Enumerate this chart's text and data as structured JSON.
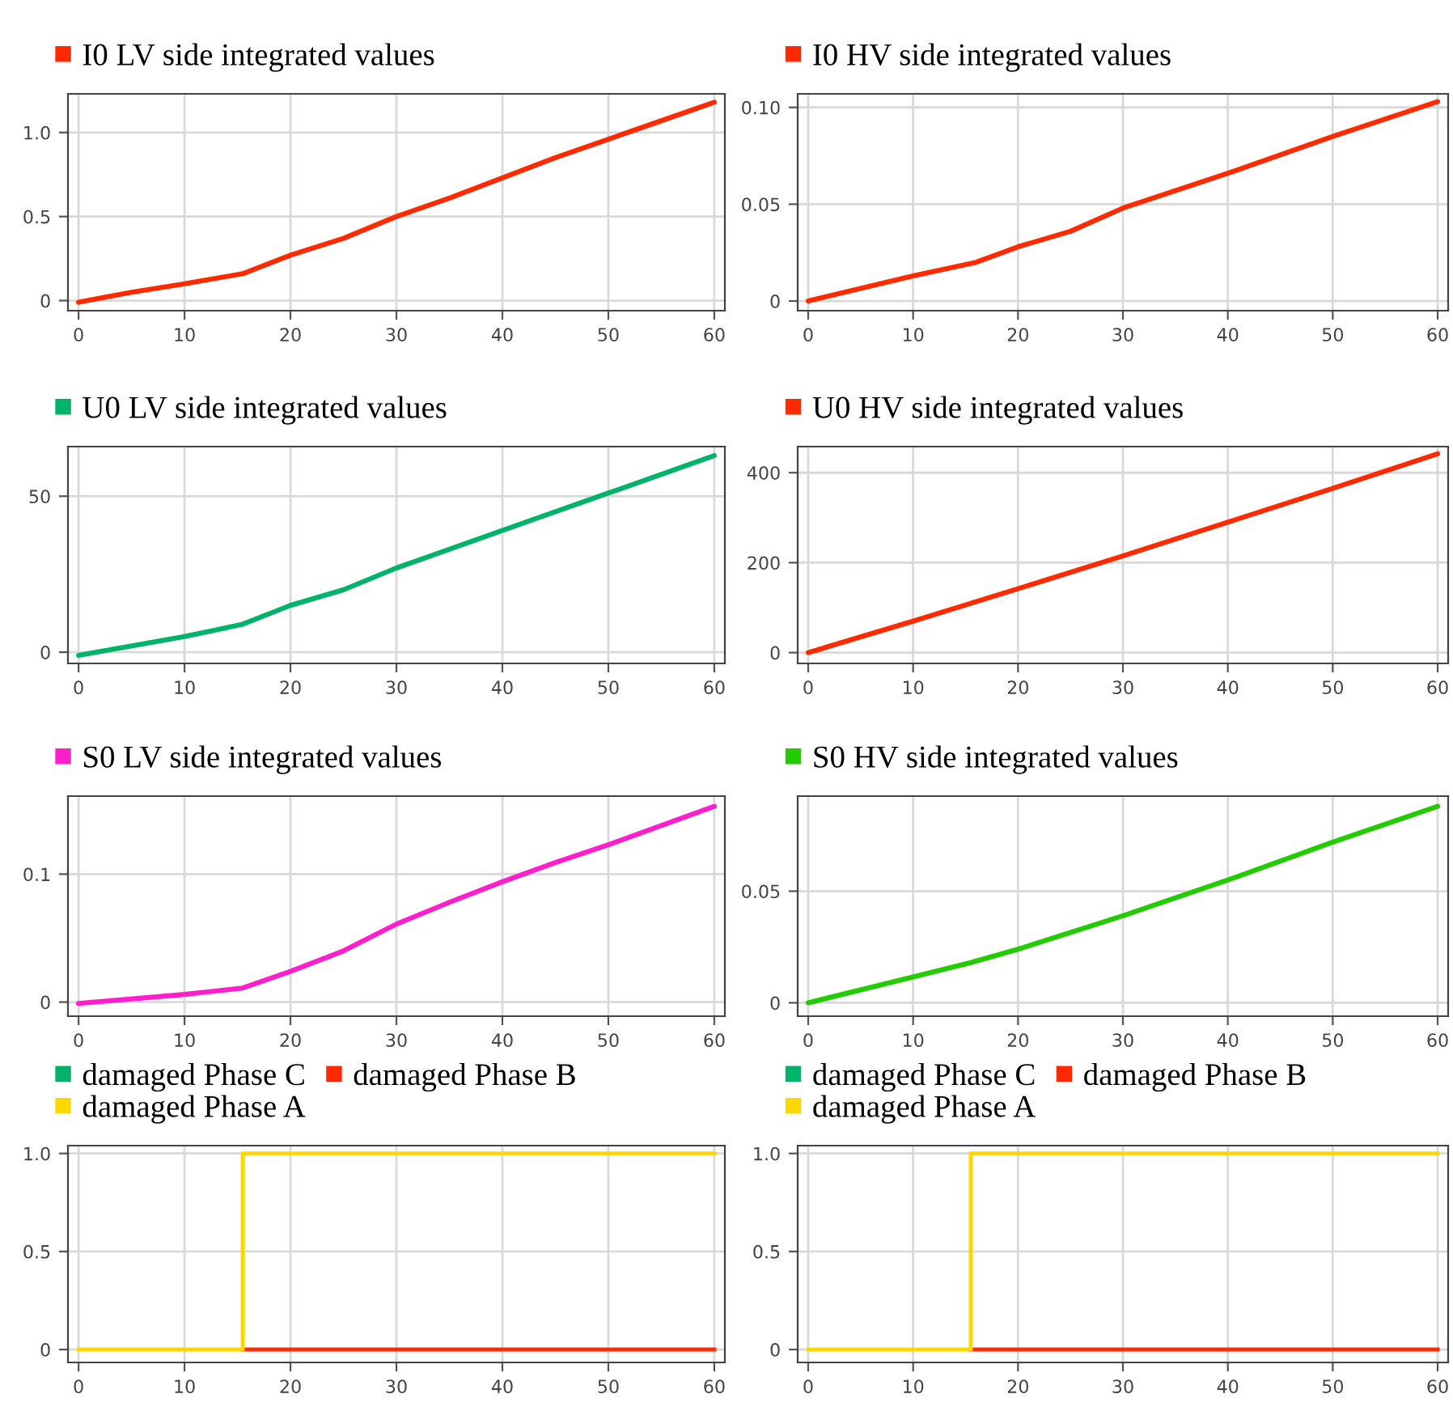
{
  "chart_data": [
    {
      "type": "line",
      "x": [
        0,
        5,
        10,
        15.5,
        20,
        25,
        30,
        35,
        40,
        45,
        50,
        55,
        60
      ],
      "xlim": [
        -1,
        61
      ],
      "xticks": [
        0,
        10,
        20,
        30,
        40,
        50,
        60
      ],
      "ylim": [
        -0.06,
        1.23
      ],
      "yticks": [
        0,
        {
          "value": 0.5,
          "label": "0.5"
        },
        {
          "value": 1.0,
          "label": "1.0"
        }
      ],
      "grid": true,
      "legend": "top",
      "series": [
        {
          "name": "I0 LV side integrated values",
          "color": "#ff2a00",
          "values": [
            -0.01,
            0.05,
            0.1,
            0.16,
            0.27,
            0.37,
            0.5,
            0.61,
            0.73,
            0.85,
            0.96,
            1.07,
            1.18
          ]
        }
      ]
    },
    {
      "type": "line",
      "x": [
        0,
        10,
        16,
        20,
        25,
        30,
        40,
        50,
        60
      ],
      "xlim": [
        -1,
        61
      ],
      "xticks": [
        0,
        10,
        20,
        30,
        40,
        50,
        60
      ],
      "ylim": [
        -0.005,
        0.107
      ],
      "yticks": [
        0,
        {
          "value": 0.05,
          "label": "0.05"
        },
        {
          "value": 0.1,
          "label": "0.10"
        }
      ],
      "grid": true,
      "legend": "top",
      "series": [
        {
          "name": "I0 HV side integrated values",
          "color": "#ff2a00",
          "values": [
            0,
            0.013,
            0.02,
            0.028,
            0.036,
            0.048,
            0.066,
            0.085,
            0.103
          ]
        }
      ]
    },
    {
      "type": "line",
      "x": [
        0,
        10,
        15.5,
        20,
        25,
        30,
        35,
        40,
        50,
        60
      ],
      "xlim": [
        -1,
        61
      ],
      "xticks": [
        0,
        10,
        20,
        30,
        40,
        50,
        60
      ],
      "ylim": [
        -3.6,
        65.9
      ],
      "yticks": [
        0,
        50
      ],
      "grid": true,
      "legend": "top",
      "series": [
        {
          "name": "U0 LV side integrated values",
          "color": "#00b36b",
          "values": [
            -1,
            5,
            9,
            15,
            20,
            27,
            33,
            39,
            51,
            63
          ]
        }
      ]
    },
    {
      "type": "line",
      "x": [
        0,
        10,
        20,
        30,
        40,
        50,
        60
      ],
      "xlim": [
        -1,
        61
      ],
      "xticks": [
        0,
        10,
        20,
        30,
        40,
        50,
        60
      ],
      "ylim": [
        -24,
        458
      ],
      "yticks": [
        0,
        200,
        400
      ],
      "grid": true,
      "legend": "top",
      "series": [
        {
          "name": "U0 HV side integrated values",
          "color": "#ff2a00",
          "values": [
            0,
            70,
            142,
            215,
            290,
            365,
            442
          ]
        }
      ]
    },
    {
      "type": "line",
      "x": [
        0,
        10,
        15.5,
        20,
        25,
        30,
        35,
        40,
        45,
        50,
        55,
        60
      ],
      "xlim": [
        -1,
        61
      ],
      "xticks": [
        0,
        10,
        20,
        30,
        40,
        50,
        60
      ],
      "ylim": [
        -0.011,
        0.161
      ],
      "yticks": [
        0,
        {
          "value": 0.1,
          "label": "0.1"
        }
      ],
      "grid": true,
      "legend": "top",
      "series": [
        {
          "name": "S0 LV side integrated values",
          "color": "#ff1ecb",
          "values": [
            -0.001,
            0.006,
            0.011,
            0.024,
            0.04,
            0.061,
            0.078,
            0.094,
            0.109,
            0.123,
            0.138,
            0.153
          ]
        }
      ]
    },
    {
      "type": "line",
      "x": [
        0,
        10,
        15.5,
        20,
        30,
        40,
        50,
        60
      ],
      "xlim": [
        -1,
        61
      ],
      "xticks": [
        0,
        10,
        20,
        30,
        40,
        50,
        60
      ],
      "ylim": [
        -0.006,
        0.0926
      ],
      "yticks": [
        0,
        {
          "value": 0.05,
          "label": "0.05"
        }
      ],
      "grid": true,
      "legend": "top",
      "series": [
        {
          "name": "S0 HV side integrated values",
          "color": "#22cc00",
          "values": [
            0,
            0.0116,
            0.018,
            0.024,
            0.039,
            0.055,
            0.072,
            0.088
          ]
        }
      ]
    },
    {
      "type": "step",
      "x": [
        0,
        15.5,
        60
      ],
      "xlim": [
        -1,
        61
      ],
      "xticks": [
        0,
        10,
        20,
        30,
        40,
        50,
        60
      ],
      "ylim": [
        -0.066,
        1.04
      ],
      "yticks": [
        0,
        {
          "value": 0.5,
          "label": "0.5"
        },
        {
          "value": 1.0,
          "label": "1.0"
        }
      ],
      "grid": true,
      "legend": "top",
      "series": [
        {
          "name": "damaged Phase C",
          "color": "#00b36b",
          "values": [
            null,
            null,
            null
          ]
        },
        {
          "name": "damaged Phase B",
          "color": "#ff2a00",
          "values": [
            null,
            0,
            0
          ]
        },
        {
          "name": "damaged Phase A",
          "color": "#ffd700",
          "values": [
            0,
            1,
            1
          ]
        }
      ]
    },
    {
      "type": "step",
      "x": [
        0,
        15.5,
        60
      ],
      "xlim": [
        -1,
        61
      ],
      "xticks": [
        0,
        10,
        20,
        30,
        40,
        50,
        60
      ],
      "ylim": [
        -0.066,
        1.04
      ],
      "yticks": [
        0,
        {
          "value": 0.5,
          "label": "0.5"
        },
        {
          "value": 1.0,
          "label": "1.0"
        }
      ],
      "grid": true,
      "legend": "top",
      "series": [
        {
          "name": "damaged Phase C",
          "color": "#00b36b",
          "values": [
            null,
            null,
            null
          ]
        },
        {
          "name": "damaged Phase B",
          "color": "#ff2a00",
          "values": [
            null,
            0,
            0
          ]
        },
        {
          "name": "damaged Phase A",
          "color": "#ffd700",
          "values": [
            0,
            1,
            1
          ]
        }
      ]
    }
  ]
}
